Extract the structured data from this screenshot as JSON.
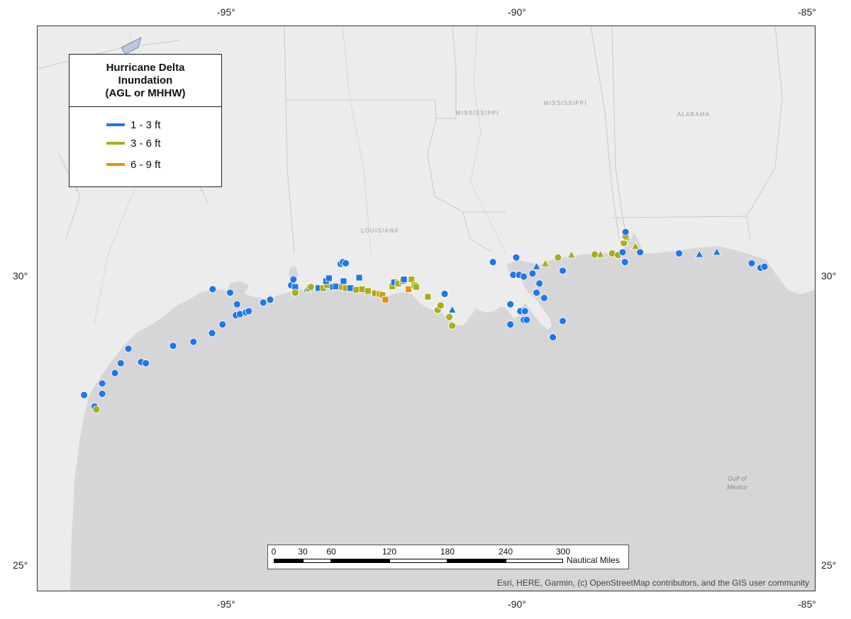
{
  "legend": {
    "title_lines": [
      "Hurricane Delta",
      "Inundation",
      "(AGL or MHHW)"
    ],
    "items": [
      {
        "label": "1 - 3 ft",
        "color": "#1f77e8"
      },
      {
        "label": "3 - 6 ft",
        "color": "#a8ad1a"
      },
      {
        "label": "6 - 9 ft",
        "color": "#e3900f"
      }
    ]
  },
  "axes": {
    "longitude_top": [
      "-95°",
      "-90°",
      "-85°"
    ],
    "longitude_bottom": [
      "-95°",
      "-90°",
      "-85°"
    ],
    "latitude_left": [
      "30°",
      "25°"
    ],
    "latitude_right": [
      "30°",
      "25°"
    ]
  },
  "map_labels": {
    "mississippi_1": "MISSISSIPPI",
    "mississippi_2": "MISSISSIPPI",
    "alabama": "ALABAMA",
    "louisiana": "LOUISIANA",
    "gulf_line1": "Gulf of",
    "gulf_line2": "Mexico"
  },
  "scalebar": {
    "ticks": [
      "0",
      "30",
      "60",
      "120",
      "180",
      "240",
      "300"
    ],
    "unit": "Nautical Miles"
  },
  "attribution": "Esri, HERE, Garmin, (c) OpenStreetMap contributors, and the GIS user community",
  "map_colors": {
    "land": "#ececec",
    "water": "#d6d6d9",
    "marker_outline": "#ffffff"
  },
  "observations": [
    {
      "lon": -97.48,
      "lat": 27.95,
      "level": "1-3",
      "shape": "circle"
    },
    {
      "lon": -97.3,
      "lat": 27.75,
      "level": "1-3",
      "shape": "circle"
    },
    {
      "lon": -97.27,
      "lat": 27.7,
      "level": "3-6",
      "shape": "circle"
    },
    {
      "lon": -97.17,
      "lat": 27.97,
      "level": "1-3",
      "shape": "circle"
    },
    {
      "lon": -97.17,
      "lat": 28.15,
      "level": "1-3",
      "shape": "circle"
    },
    {
      "lon": -96.95,
      "lat": 28.33,
      "level": "1-3",
      "shape": "circle"
    },
    {
      "lon": -96.85,
      "lat": 28.5,
      "level": "1-3",
      "shape": "circle"
    },
    {
      "lon": -96.72,
      "lat": 28.75,
      "level": "1-3",
      "shape": "circle"
    },
    {
      "lon": -96.5,
      "lat": 28.52,
      "level": "1-3",
      "shape": "circle"
    },
    {
      "lon": -96.42,
      "lat": 28.5,
      "level": "1-3",
      "shape": "circle"
    },
    {
      "lon": -95.95,
      "lat": 28.8,
      "level": "1-3",
      "shape": "circle"
    },
    {
      "lon": -95.6,
      "lat": 28.87,
      "level": "1-3",
      "shape": "circle"
    },
    {
      "lon": -95.28,
      "lat": 29.02,
      "level": "1-3",
      "shape": "circle"
    },
    {
      "lon": -95.1,
      "lat": 29.17,
      "level": "1-3",
      "shape": "circle"
    },
    {
      "lon": -94.87,
      "lat": 29.33,
      "level": "1-3",
      "shape": "circle"
    },
    {
      "lon": -94.8,
      "lat": 29.35,
      "level": "1-3",
      "shape": "circle"
    },
    {
      "lon": -94.7,
      "lat": 29.38,
      "level": "1-3",
      "shape": "circle"
    },
    {
      "lon": -94.65,
      "lat": 29.4,
      "level": "1-3",
      "shape": "circle"
    },
    {
      "lon": -94.85,
      "lat": 29.52,
      "level": "1-3",
      "shape": "circle"
    },
    {
      "lon": -94.97,
      "lat": 29.72,
      "level": "1-3",
      "shape": "circle"
    },
    {
      "lon": -95.27,
      "lat": 29.78,
      "level": "1-3",
      "shape": "circle"
    },
    {
      "lon": -94.4,
      "lat": 29.55,
      "level": "1-3",
      "shape": "circle"
    },
    {
      "lon": -94.28,
      "lat": 29.6,
      "level": "1-3",
      "shape": "circle"
    },
    {
      "lon": -93.92,
      "lat": 29.85,
      "level": "1-3",
      "shape": "circle"
    },
    {
      "lon": -93.88,
      "lat": 29.95,
      "level": "1-3",
      "shape": "circle"
    },
    {
      "lon": -93.85,
      "lat": 29.82,
      "level": "1-3",
      "shape": "square"
    },
    {
      "lon": -93.85,
      "lat": 29.72,
      "level": "3-6",
      "shape": "circle"
    },
    {
      "lon": -93.65,
      "lat": 29.78,
      "level": "3-6",
      "shape": "triangle"
    },
    {
      "lon": -93.6,
      "lat": 29.8,
      "level": "1-3",
      "shape": "square"
    },
    {
      "lon": -93.45,
      "lat": 29.8,
      "level": "1-3",
      "shape": "square"
    },
    {
      "lon": -93.37,
      "lat": 29.8,
      "level": "3-6",
      "shape": "square"
    },
    {
      "lon": -93.3,
      "lat": 29.85,
      "level": "3-6",
      "shape": "square"
    },
    {
      "lon": -93.32,
      "lat": 29.92,
      "level": "1-3",
      "shape": "square"
    },
    {
      "lon": -93.27,
      "lat": 29.97,
      "level": "1-3",
      "shape": "square"
    },
    {
      "lon": -93.2,
      "lat": 29.82,
      "level": "1-3",
      "shape": "square"
    },
    {
      "lon": -93.15,
      "lat": 29.83,
      "level": "1-3",
      "shape": "square"
    },
    {
      "lon": -93.05,
      "lat": 29.82,
      "level": "3-6",
      "shape": "square"
    },
    {
      "lon": -93.02,
      "lat": 29.92,
      "level": "1-3",
      "shape": "square"
    },
    {
      "lon": -92.98,
      "lat": 29.8,
      "level": "3-6",
      "shape": "square"
    },
    {
      "lon": -92.9,
      "lat": 29.8,
      "level": "1-3",
      "shape": "square"
    },
    {
      "lon": -92.8,
      "lat": 29.77,
      "level": "3-6",
      "shape": "square"
    },
    {
      "lon": -92.75,
      "lat": 29.98,
      "level": "1-3",
      "shape": "square"
    },
    {
      "lon": -92.7,
      "lat": 29.78,
      "level": "3-6",
      "shape": "square"
    },
    {
      "lon": -92.6,
      "lat": 29.75,
      "level": "3-6",
      "shape": "square"
    },
    {
      "lon": -92.48,
      "lat": 29.71,
      "level": "3-6",
      "shape": "square"
    },
    {
      "lon": -92.4,
      "lat": 29.7,
      "level": "6-9",
      "shape": "square"
    },
    {
      "lon": -92.35,
      "lat": 29.68,
      "level": "3-6",
      "shape": "square"
    },
    {
      "lon": -92.3,
      "lat": 29.6,
      "level": "6-9",
      "shape": "square"
    },
    {
      "lon": -92.18,
      "lat": 29.83,
      "level": "3-6",
      "shape": "square"
    },
    {
      "lon": -92.15,
      "lat": 29.9,
      "level": "1-3",
      "shape": "square"
    },
    {
      "lon": -92.08,
      "lat": 29.88,
      "level": "3-6",
      "shape": "square"
    },
    {
      "lon": -92.0,
      "lat": 29.92,
      "level": "3-6",
      "shape": "square"
    },
    {
      "lon": -91.98,
      "lat": 29.95,
      "level": "1-3",
      "shape": "square"
    },
    {
      "lon": -91.9,
      "lat": 29.78,
      "level": "6-9",
      "shape": "square"
    },
    {
      "lon": -91.85,
      "lat": 29.95,
      "level": "3-6",
      "shape": "square"
    },
    {
      "lon": -91.8,
      "lat": 29.85,
      "level": "3-6",
      "shape": "square"
    },
    {
      "lon": -91.77,
      "lat": 29.82,
      "level": "3-6",
      "shape": "square"
    },
    {
      "lon": -93.58,
      "lat": 29.82,
      "level": "3-6",
      "shape": "circle"
    },
    {
      "lon": -93.07,
      "lat": 30.22,
      "level": "1-3",
      "shape": "circle"
    },
    {
      "lon": -93.03,
      "lat": 30.25,
      "level": "1-3",
      "shape": "circle"
    },
    {
      "lon": -92.98,
      "lat": 30.23,
      "level": "1-3",
      "shape": "circle"
    },
    {
      "lon": -91.57,
      "lat": 29.65,
      "level": "3-6",
      "shape": "square"
    },
    {
      "lon": -91.4,
      "lat": 29.42,
      "level": "3-6",
      "shape": "circle"
    },
    {
      "lon": -91.35,
      "lat": 29.5,
      "level": "3-6",
      "shape": "circle"
    },
    {
      "lon": -91.27,
      "lat": 29.7,
      "level": "3-6",
      "shape": "circle"
    },
    {
      "lon": -91.28,
      "lat": 29.7,
      "level": "1-3",
      "shape": "circle"
    },
    {
      "lon": -91.15,
      "lat": 29.42,
      "level": "1-3",
      "shape": "triangle"
    },
    {
      "lon": -91.2,
      "lat": 29.3,
      "level": "3-6",
      "shape": "circle"
    },
    {
      "lon": -91.15,
      "lat": 29.15,
      "level": "3-6",
      "shape": "circle"
    },
    {
      "lon": -90.45,
      "lat": 30.25,
      "level": "1-3",
      "shape": "circle"
    },
    {
      "lon": -90.05,
      "lat": 30.33,
      "level": "1-3",
      "shape": "circle"
    },
    {
      "lon": -90.1,
      "lat": 30.03,
      "level": "1-3",
      "shape": "circle"
    },
    {
      "lon": -90.0,
      "lat": 30.03,
      "level": "1-3",
      "shape": "circle"
    },
    {
      "lon": -89.92,
      "lat": 30.0,
      "level": "1-3",
      "shape": "circle"
    },
    {
      "lon": -89.77,
      "lat": 30.05,
      "level": "1-3",
      "shape": "circle"
    },
    {
      "lon": -89.7,
      "lat": 30.17,
      "level": "1-3",
      "shape": "triangle"
    },
    {
      "lon": -89.65,
      "lat": 29.88,
      "level": "1-3",
      "shape": "circle"
    },
    {
      "lon": -89.7,
      "lat": 29.72,
      "level": "1-3",
      "shape": "circle"
    },
    {
      "lon": -89.57,
      "lat": 29.63,
      "level": "1-3",
      "shape": "circle"
    },
    {
      "lon": -90.15,
      "lat": 29.52,
      "level": "1-3",
      "shape": "circle"
    },
    {
      "lon": -89.98,
      "lat": 29.4,
      "level": "1-3",
      "shape": "circle"
    },
    {
      "lon": -89.9,
      "lat": 29.4,
      "level": "1-3",
      "shape": "circle"
    },
    {
      "lon": -89.92,
      "lat": 29.25,
      "level": "1-3",
      "shape": "circle"
    },
    {
      "lon": -89.87,
      "lat": 29.25,
      "level": "1-3",
      "shape": "circle"
    },
    {
      "lon": -90.15,
      "lat": 29.17,
      "level": "1-3",
      "shape": "circle"
    },
    {
      "lon": -89.25,
      "lat": 29.23,
      "level": "1-3",
      "shape": "circle"
    },
    {
      "lon": -89.42,
      "lat": 28.95,
      "level": "1-3",
      "shape": "circle"
    },
    {
      "lon": -89.55,
      "lat": 30.22,
      "level": "3-6",
      "shape": "triangle"
    },
    {
      "lon": -89.33,
      "lat": 30.33,
      "level": "3-6",
      "shape": "circle"
    },
    {
      "lon": -89.25,
      "lat": 30.1,
      "level": "1-3",
      "shape": "circle"
    },
    {
      "lon": -89.1,
      "lat": 30.37,
      "level": "3-6",
      "shape": "triangle"
    },
    {
      "lon": -88.7,
      "lat": 30.38,
      "level": "3-6",
      "shape": "circle"
    },
    {
      "lon": -88.6,
      "lat": 30.38,
      "level": "3-6",
      "shape": "triangle"
    },
    {
      "lon": -88.4,
      "lat": 30.4,
      "level": "3-6",
      "shape": "circle"
    },
    {
      "lon": -88.3,
      "lat": 30.37,
      "level": "3-6",
      "shape": "circle"
    },
    {
      "lon": -88.22,
      "lat": 30.42,
      "level": "1-3",
      "shape": "circle"
    },
    {
      "lon": -88.2,
      "lat": 30.58,
      "level": "3-6",
      "shape": "circle"
    },
    {
      "lon": -88.15,
      "lat": 30.67,
      "level": "3-6",
      "shape": "triangle"
    },
    {
      "lon": -88.17,
      "lat": 30.7,
      "level": "3-6",
      "shape": "circle"
    },
    {
      "lon": -88.17,
      "lat": 30.77,
      "level": "1-3",
      "shape": "circle"
    },
    {
      "lon": -88.18,
      "lat": 30.25,
      "level": "1-3",
      "shape": "circle"
    },
    {
      "lon": -88.0,
      "lat": 30.52,
      "level": "3-6",
      "shape": "triangle"
    },
    {
      "lon": -87.92,
      "lat": 30.42,
      "level": "1-3",
      "shape": "circle"
    },
    {
      "lon": -87.25,
      "lat": 30.4,
      "level": "1-3",
      "shape": "circle"
    },
    {
      "lon": -86.9,
      "lat": 30.38,
      "level": "1-3",
      "shape": "triangle"
    },
    {
      "lon": -86.6,
      "lat": 30.42,
      "level": "1-3",
      "shape": "triangle"
    },
    {
      "lon": -86.0,
      "lat": 30.23,
      "level": "1-3",
      "shape": "circle"
    },
    {
      "lon": -85.85,
      "lat": 30.15,
      "level": "1-3",
      "shape": "circle"
    },
    {
      "lon": -85.78,
      "lat": 30.17,
      "level": "1-3",
      "shape": "circle"
    }
  ]
}
